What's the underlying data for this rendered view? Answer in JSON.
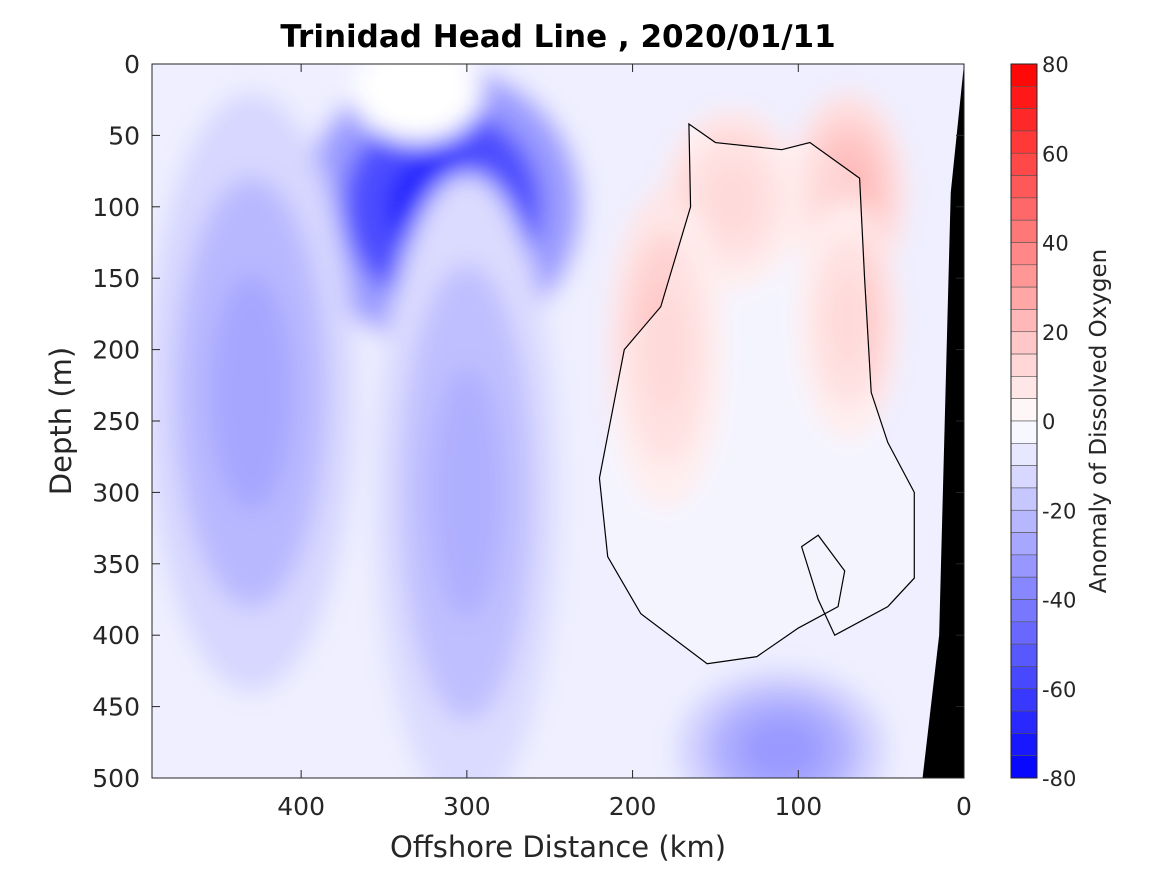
{
  "chart_data": {
    "type": "heatmap",
    "title": "Trinidad Head Line , 2020/01/11",
    "xlabel": "Offshore Distance (km)",
    "ylabel": "Depth (m)",
    "xlim": [
      490,
      0
    ],
    "ylim": [
      0,
      500
    ],
    "x_ticks": [
      400,
      300,
      200,
      100,
      0
    ],
    "y_ticks": [
      0,
      50,
      100,
      150,
      200,
      250,
      300,
      350,
      400,
      450,
      500
    ],
    "colorbar": {
      "label": "Anomaly of Dissolved Oxygen",
      "range": [
        -80,
        80
      ],
      "ticks": [
        80,
        60,
        40,
        20,
        0,
        -20,
        -40,
        -60,
        -80
      ],
      "step": 5,
      "low_color": "#0000ff",
      "mid_color": "#ffffff",
      "high_color": "#ff0000"
    },
    "background_anomaly": -5,
    "field_features": [
      {
        "name": "deep low-oxygen core",
        "distance_km": 315,
        "depth_m": 100,
        "anomaly": -70
      },
      {
        "name": "western low band",
        "distance_km": 430,
        "depth_m": 230,
        "anomaly": -28
      },
      {
        "name": "mid-section low column",
        "distance_km": 300,
        "depth_m": 300,
        "anomaly": -25
      },
      {
        "name": "bottom low patch",
        "distance_km": 110,
        "depth_m": 480,
        "anomaly": -32
      },
      {
        "name": "positive patch north",
        "distance_km": 140,
        "depth_m": 95,
        "anomaly": 18
      },
      {
        "name": "positive patch west",
        "distance_km": 180,
        "depth_m": 200,
        "anomaly": 18
      },
      {
        "name": "positive patch east top",
        "distance_km": 70,
        "depth_m": 90,
        "anomaly": 22
      },
      {
        "name": "positive patch east mid",
        "distance_km": 70,
        "depth_m": 180,
        "anomaly": 18
      },
      {
        "name": "near-zero shallow pocket",
        "distance_km": 330,
        "depth_m": 20,
        "anomaly": 0
      }
    ],
    "zero_contour": [
      [
        166,
        42
      ],
      [
        150,
        55
      ],
      [
        110,
        60
      ],
      [
        93,
        55
      ],
      [
        63,
        80
      ],
      [
        60,
        150
      ],
      [
        56,
        230
      ],
      [
        46,
        265
      ],
      [
        30,
        300
      ],
      [
        30,
        360
      ],
      [
        46,
        380
      ],
      [
        78,
        400
      ],
      [
        88,
        375
      ],
      [
        98,
        338
      ],
      [
        88,
        330
      ],
      [
        72,
        355
      ],
      [
        76,
        380
      ],
      [
        100,
        395
      ],
      [
        125,
        415
      ],
      [
        155,
        420
      ],
      [
        195,
        385
      ],
      [
        215,
        345
      ],
      [
        220,
        290
      ],
      [
        205,
        200
      ],
      [
        183,
        170
      ],
      [
        165,
        100
      ],
      [
        166,
        42
      ]
    ],
    "bathymetry_km": [
      [
        0,
        0
      ],
      [
        8,
        90
      ],
      [
        15,
        400
      ],
      [
        25,
        500
      ]
    ]
  }
}
